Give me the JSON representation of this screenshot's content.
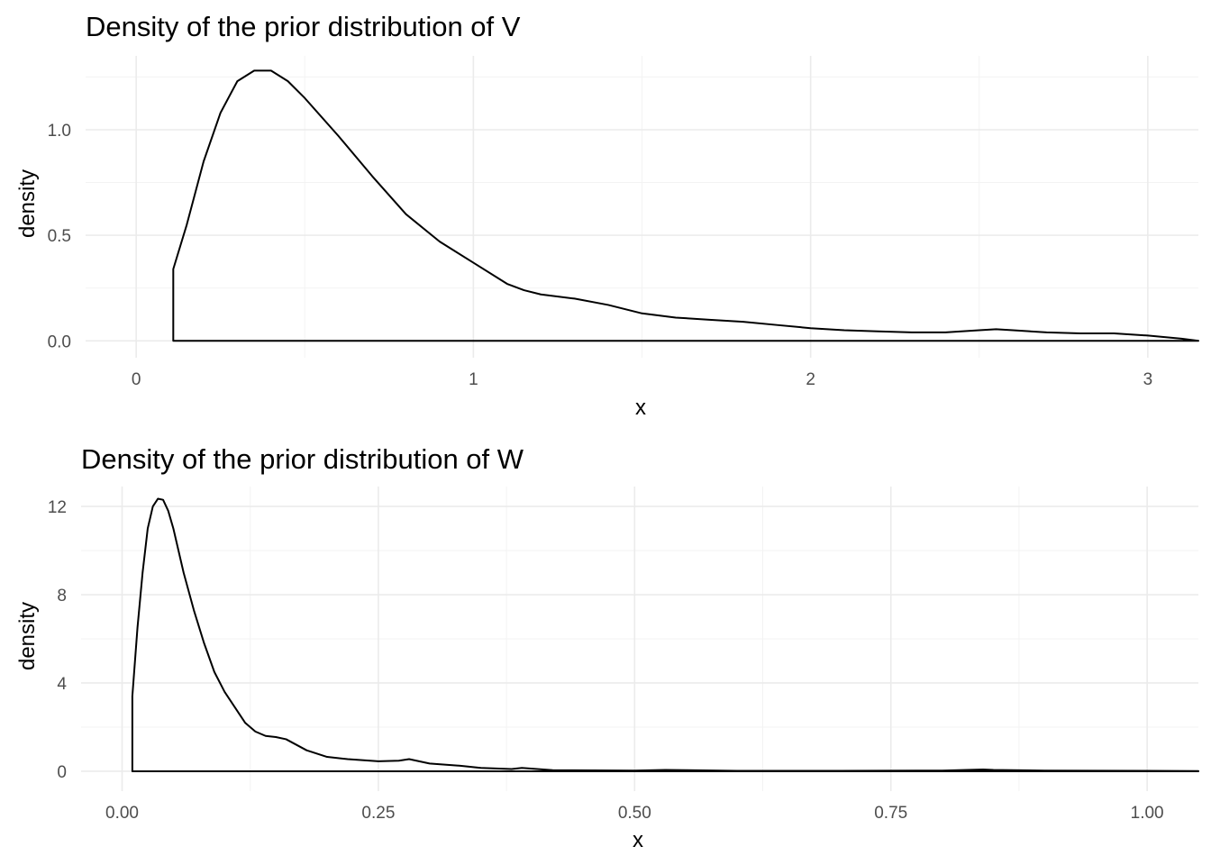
{
  "chart_data": [
    {
      "type": "area",
      "title": "Density of the prior distribution of V",
      "xlabel": "x",
      "ylabel": "density",
      "xlim": [
        -0.15,
        3.15
      ],
      "ylim": [
        -0.08,
        1.35
      ],
      "x_ticks": [
        0,
        1,
        2,
        3
      ],
      "x_tick_labels": [
        "0",
        "1",
        "2",
        "3"
      ],
      "y_ticks": [
        0,
        0.5,
        1.0
      ],
      "y_tick_labels": [
        "0.0",
        "0.5",
        "1.0"
      ],
      "grid": true,
      "series": [
        {
          "x": [
            0.11,
            0.15,
            0.2,
            0.25,
            0.3,
            0.35,
            0.4,
            0.45,
            0.5,
            0.6,
            0.7,
            0.8,
            0.9,
            1.0,
            1.1,
            1.15,
            1.2,
            1.3,
            1.4,
            1.5,
            1.6,
            1.7,
            1.8,
            1.9,
            2.0,
            2.1,
            2.2,
            2.3,
            2.4,
            2.5,
            2.55,
            2.6,
            2.7,
            2.8,
            2.9,
            3.0,
            3.1,
            3.15
          ],
          "y": [
            0.34,
            0.55,
            0.85,
            1.08,
            1.23,
            1.28,
            1.28,
            1.23,
            1.15,
            0.97,
            0.78,
            0.6,
            0.47,
            0.37,
            0.27,
            0.24,
            0.22,
            0.2,
            0.17,
            0.13,
            0.11,
            0.1,
            0.09,
            0.075,
            0.06,
            0.05,
            0.045,
            0.04,
            0.04,
            0.05,
            0.055,
            0.05,
            0.04,
            0.035,
            0.035,
            0.025,
            0.01,
            0.0
          ]
        }
      ]
    },
    {
      "type": "area",
      "title": "Density of the prior distribution of W",
      "xlabel": "x",
      "ylabel": "density",
      "xlim": [
        -0.04,
        1.05
      ],
      "ylim": [
        -0.9,
        12.9
      ],
      "x_ticks": [
        0,
        0.25,
        0.5,
        0.75,
        1.0
      ],
      "x_tick_labels": [
        "0.00",
        "0.25",
        "0.50",
        "0.75",
        "1.00"
      ],
      "y_ticks": [
        0,
        4,
        8,
        12
      ],
      "y_tick_labels": [
        "0",
        "4",
        "8",
        "12"
      ],
      "grid": true,
      "series": [
        {
          "x": [
            0.01,
            0.015,
            0.02,
            0.025,
            0.03,
            0.035,
            0.04,
            0.045,
            0.05,
            0.06,
            0.07,
            0.08,
            0.09,
            0.1,
            0.11,
            0.12,
            0.13,
            0.14,
            0.15,
            0.16,
            0.17,
            0.18,
            0.2,
            0.22,
            0.25,
            0.27,
            0.28,
            0.3,
            0.33,
            0.35,
            0.38,
            0.39,
            0.42,
            0.5,
            0.53,
            0.55,
            0.6,
            0.7,
            0.8,
            0.84,
            0.85,
            0.9,
            1.0,
            1.05
          ],
          "y": [
            3.4,
            6.5,
            9.0,
            11.0,
            12.0,
            12.35,
            12.3,
            11.8,
            11.0,
            9.0,
            7.3,
            5.8,
            4.5,
            3.6,
            2.9,
            2.2,
            1.8,
            1.6,
            1.55,
            1.45,
            1.2,
            0.95,
            0.65,
            0.55,
            0.45,
            0.48,
            0.55,
            0.35,
            0.25,
            0.15,
            0.1,
            0.15,
            0.05,
            0.03,
            0.06,
            0.05,
            0.02,
            0.02,
            0.03,
            0.08,
            0.06,
            0.03,
            0.02,
            0.01
          ]
        }
      ]
    }
  ]
}
